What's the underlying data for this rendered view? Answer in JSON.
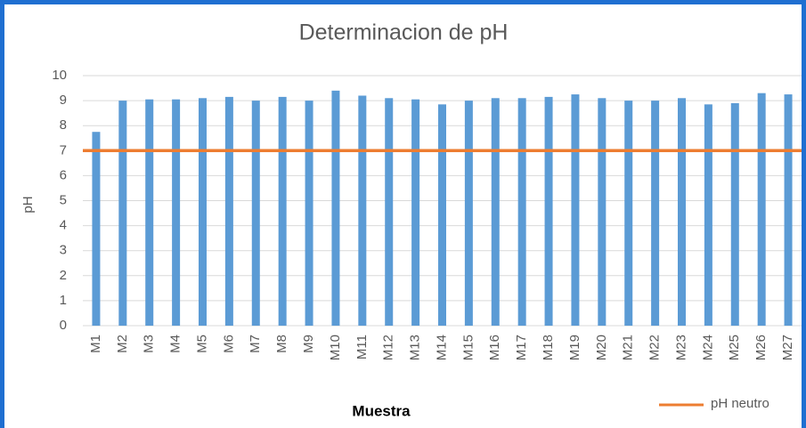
{
  "chart_data": {
    "type": "bar",
    "title": "Determinacion de pH",
    "x_label": "Muestra",
    "y_label": "pH",
    "categories": [
      "M1",
      "M2",
      "M3",
      "M4",
      "M5",
      "M6",
      "M7",
      "M8",
      "M9",
      "M10",
      "M11",
      "M12",
      "M13",
      "M14",
      "M15",
      "M16",
      "M17",
      "M18",
      "M19",
      "M20",
      "M21",
      "M22",
      "M23",
      "M24",
      "M25",
      "M26",
      "M27"
    ],
    "values": [
      7.75,
      9.0,
      9.05,
      9.05,
      9.1,
      9.15,
      9.0,
      9.15,
      9.0,
      9.4,
      9.2,
      9.1,
      9.05,
      8.85,
      9.0,
      9.1,
      9.1,
      9.15,
      9.25,
      9.1,
      9.0,
      9.0,
      9.1,
      8.85,
      8.9,
      9.3,
      9.25
    ],
    "color": "#5b9bd5",
    "reference_line": {
      "name": "pH neutro",
      "value": 7,
      "color": "#ed7d31"
    },
    "ylim": [
      0,
      10
    ],
    "yticks": [
      0,
      1,
      2,
      3,
      4,
      5,
      6,
      7,
      8,
      9,
      10
    ],
    "grid": true
  }
}
